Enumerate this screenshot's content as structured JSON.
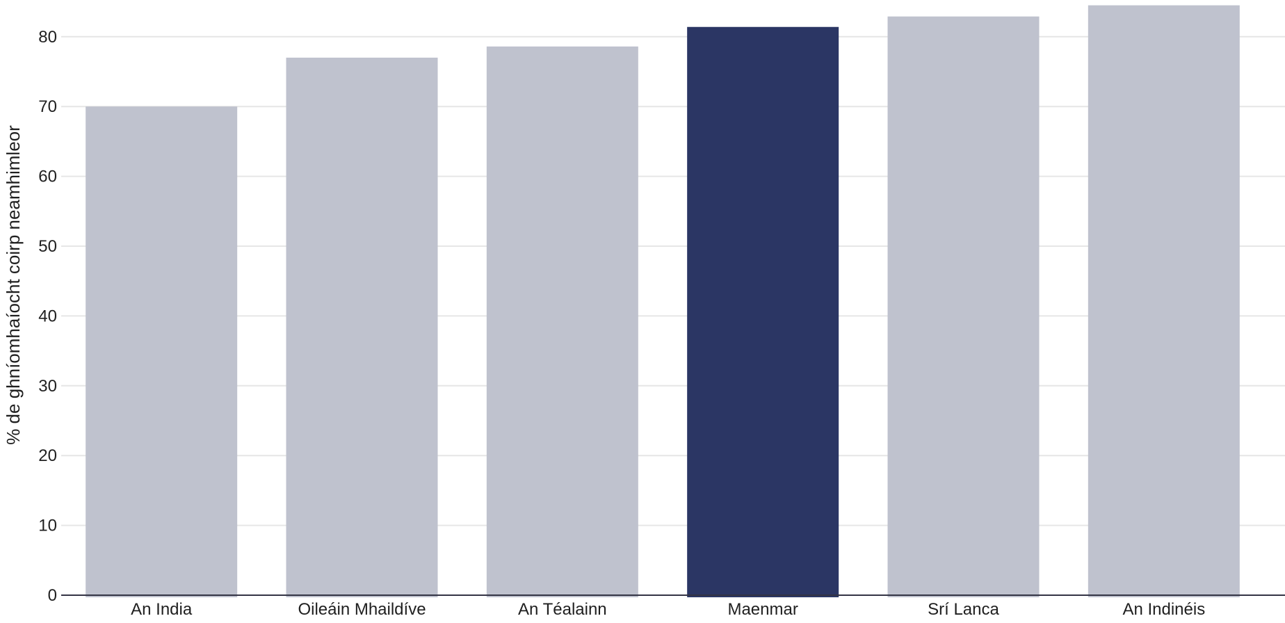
{
  "chart_data": {
    "type": "bar",
    "categories": [
      "An India",
      "Oileáin Mhaildíve",
      "An Téalainn",
      "Maenmar",
      "Srí Lanca",
      "An Indinéis"
    ],
    "values": [
      70,
      77,
      78.6,
      81.4,
      82.9,
      84.5
    ],
    "highlight": "Maenmar",
    "title": "",
    "xlabel": "",
    "ylabel": "% de ghníomhaíocht coirp neamhimleor",
    "ylim": [
      0,
      85
    ],
    "yticks": [
      0,
      10,
      20,
      30,
      40,
      50,
      60,
      70,
      80
    ],
    "grid": true,
    "colors": {
      "bar": "#bfc2ce",
      "highlight": "#2b3664",
      "grid": "#e6e6e6",
      "baseline": "#333344"
    }
  }
}
